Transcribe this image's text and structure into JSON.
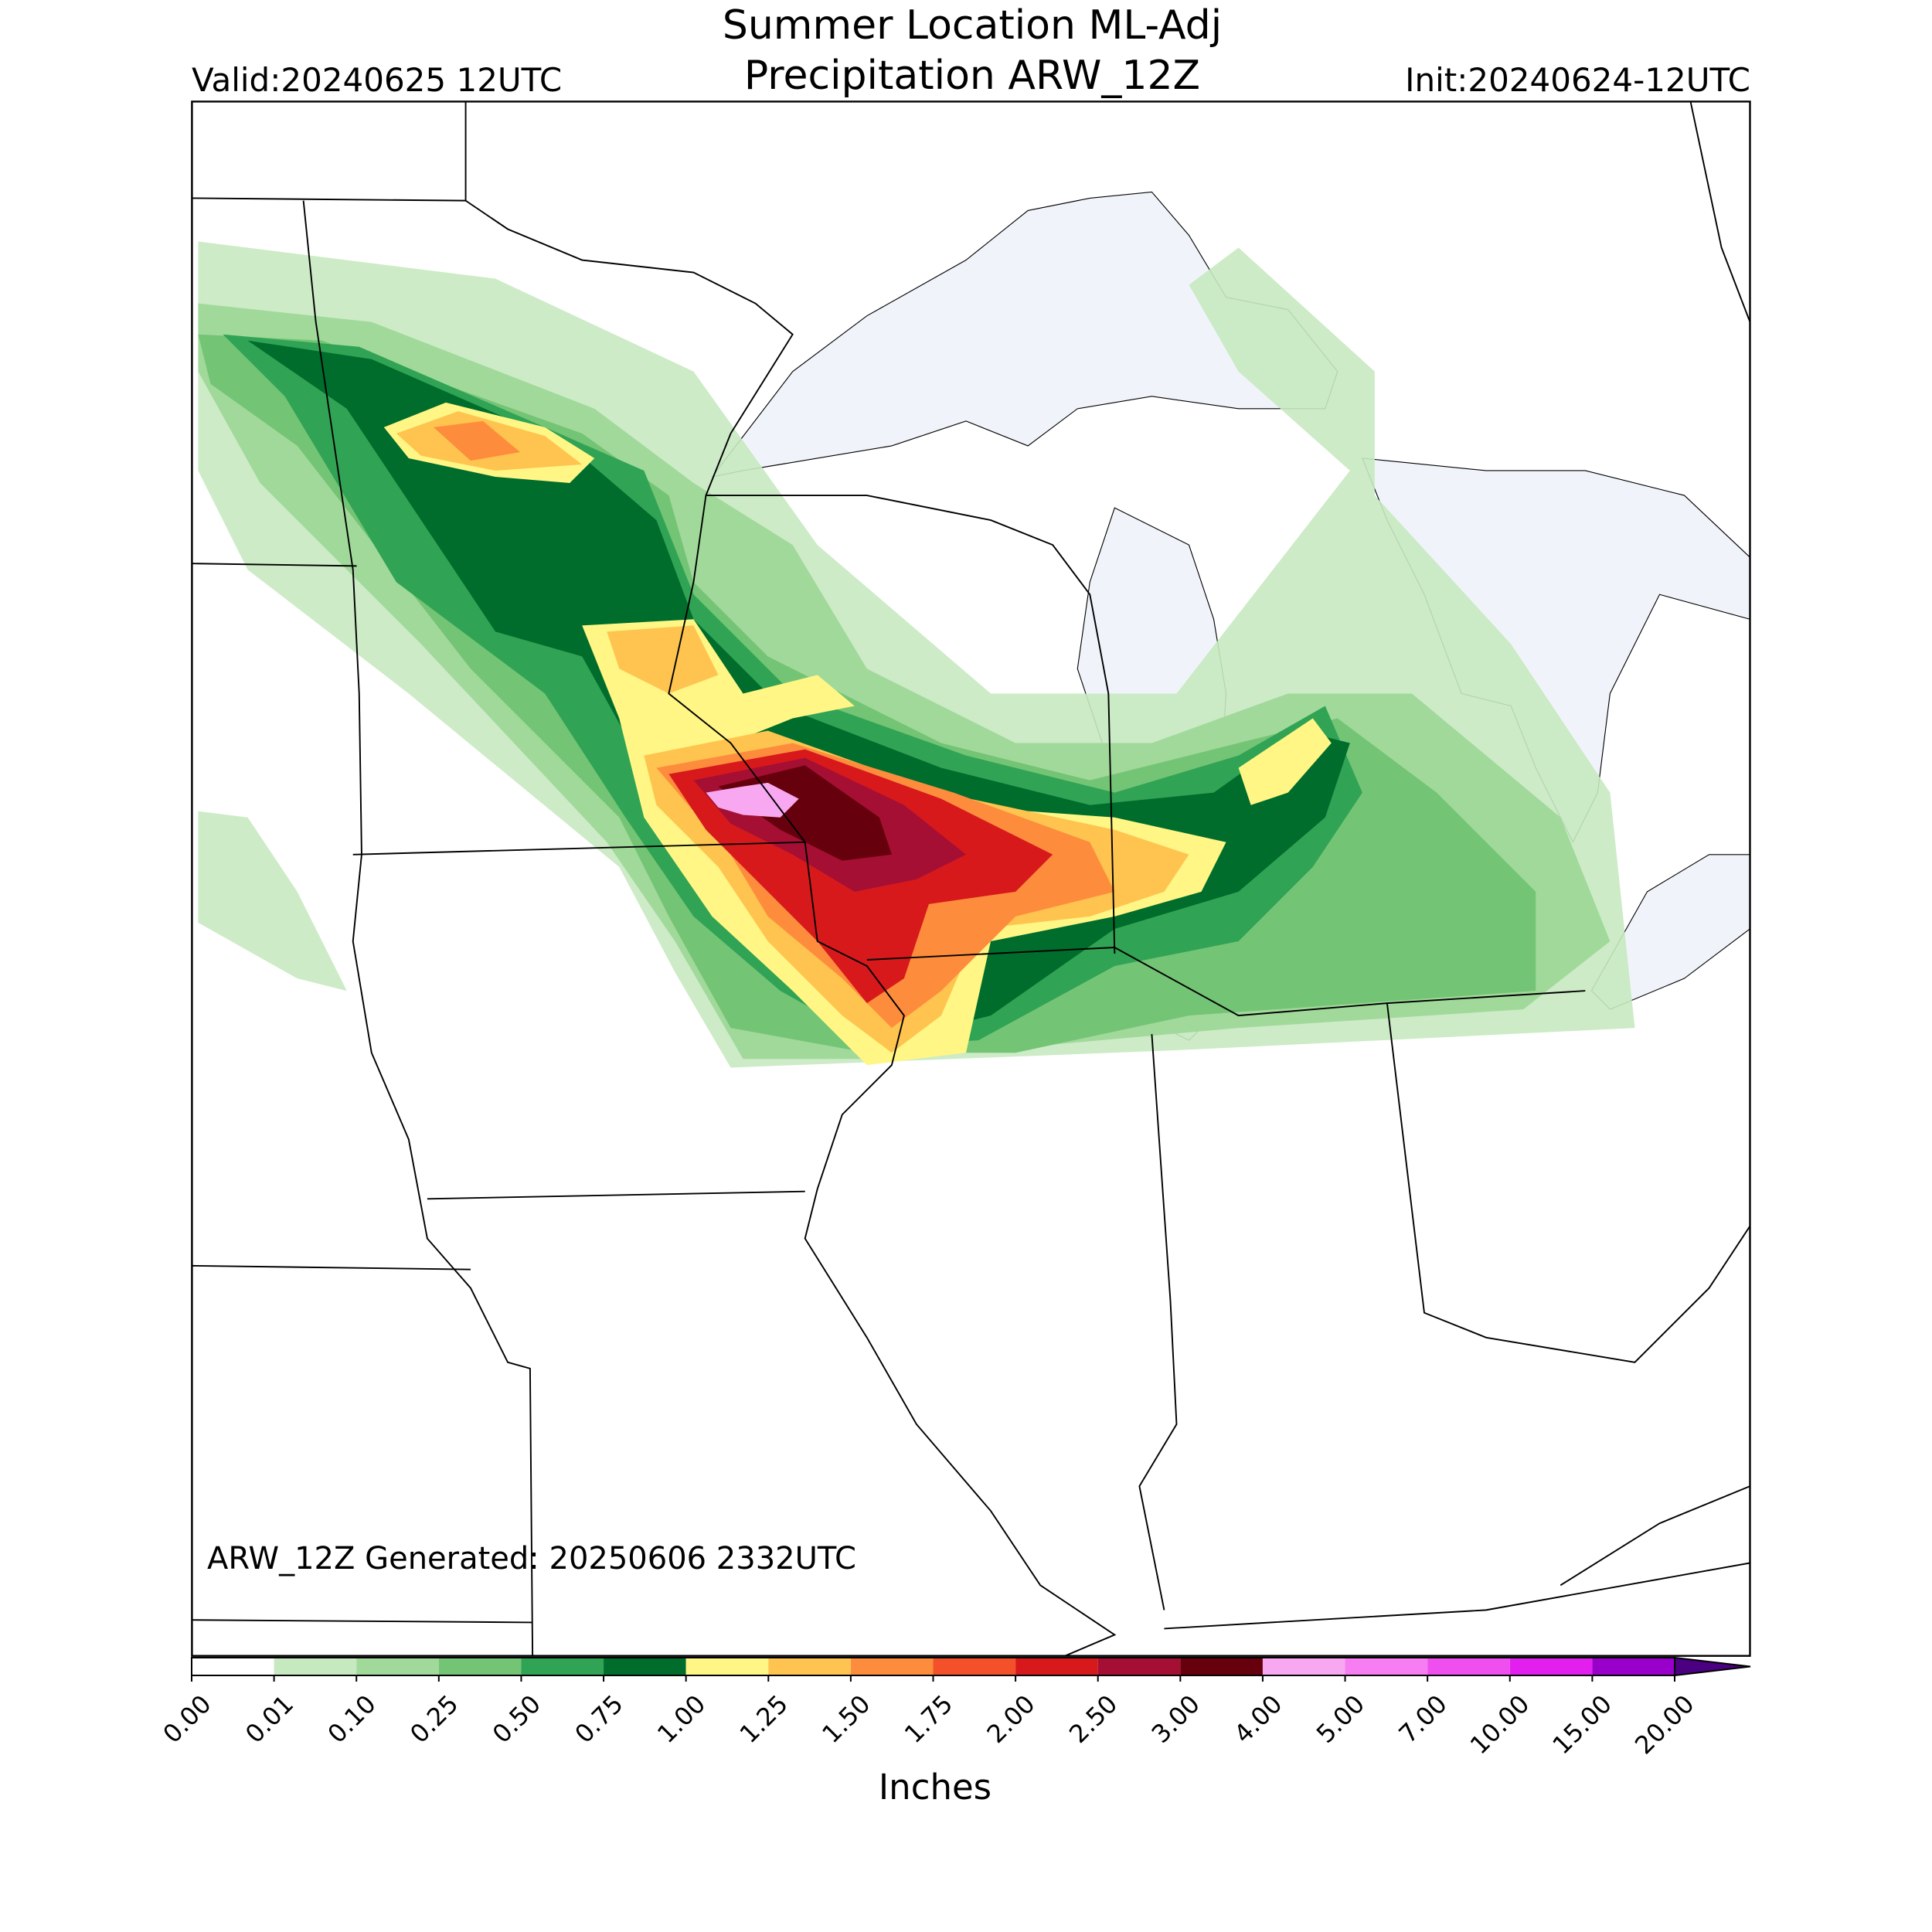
{
  "title": [
    "Summer Location ML-Adj",
    "Precipitation ARW_12Z"
  ],
  "valid": "Valid:20240625 12UTC",
  "init": "Init:20240624-12UTC",
  "generated": "ARW_12Z Generated: 20250606 2332UTC",
  "colorbar": {
    "label": "Inches",
    "bounds": [
      {
        "value": 0,
        "label": "0.00"
      },
      {
        "value": 0.01,
        "label": "0.01"
      },
      {
        "value": 0.1,
        "label": "0.10"
      },
      {
        "value": 0.25,
        "label": "0.25"
      },
      {
        "value": 0.5,
        "label": "0.50"
      },
      {
        "value": 0.75,
        "label": "0.75"
      },
      {
        "value": 1,
        "label": "1.00"
      },
      {
        "value": 1.25,
        "label": "1.25"
      },
      {
        "value": 1.5,
        "label": "1.50"
      },
      {
        "value": 1.75,
        "label": "1.75"
      },
      {
        "value": 2,
        "label": "2.00"
      },
      {
        "value": 2.5,
        "label": "2.50"
      },
      {
        "value": 3,
        "label": "3.00"
      },
      {
        "value": 4,
        "label": "4.00"
      },
      {
        "value": 5,
        "label": "5.00"
      },
      {
        "value": 7,
        "label": "7.00"
      },
      {
        "value": 10,
        "label": "10.00"
      },
      {
        "value": 15,
        "label": "15.00"
      },
      {
        "value": 20,
        "label": "20.00"
      }
    ],
    "colors": [
      "#ffffff",
      "#c7e9c0",
      "#a1d99b",
      "#74c476",
      "#31a354",
      "#006d2c",
      "#fff685",
      "#fec44f",
      "#fd8d3c",
      "#f4512b",
      "#d7191c",
      "#a50f33",
      "#67000d",
      "#f7a8f0",
      "#f77df2",
      "#f04ff0",
      "#e31ff0",
      "#9900cc"
    ],
    "extend_color": "#4b0082"
  }
}
